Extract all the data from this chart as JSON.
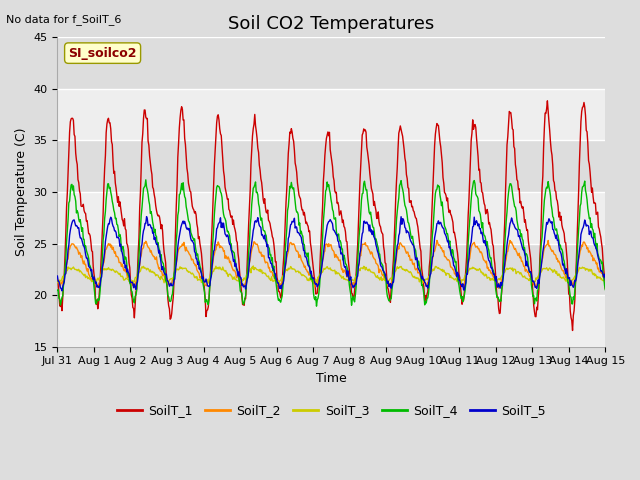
{
  "title": "Soil CO2 Temperatures",
  "xlabel": "Time",
  "ylabel": "Soil Temperature (C)",
  "ylim": [
    15,
    45
  ],
  "note": "No data for f_SoilT_6",
  "legend_label": "SI_soilco2",
  "series": {
    "SoilT_1": {
      "color": "#cc0000"
    },
    "SoilT_2": {
      "color": "#ff8800"
    },
    "SoilT_3": {
      "color": "#cccc00"
    },
    "SoilT_4": {
      "color": "#00bb00"
    },
    "SoilT_5": {
      "color": "#0000cc"
    }
  },
  "xtick_labels": [
    "Jul 31",
    "Aug 1",
    "Aug 2",
    "Aug 3",
    "Aug 4",
    "Aug 5",
    "Aug 6",
    "Aug 7",
    "Aug 8",
    "Aug 9",
    "Aug 10",
    "Aug 11",
    "Aug 12",
    "Aug 13",
    "Aug 14",
    "Aug 15"
  ],
  "ytick_labels": [
    "15",
    "20",
    "25",
    "30",
    "35",
    "40",
    "45"
  ],
  "ytick_vals": [
    15,
    20,
    25,
    30,
    35,
    40,
    45
  ],
  "bg_color": "#dddddd",
  "plot_bg_light": "#eeeeee",
  "plot_bg_dark": "#dddddd",
  "grid_color": "#ffffff",
  "title_fontsize": 13,
  "axis_fontsize": 9,
  "tick_fontsize": 8,
  "legend_fontsize": 9
}
